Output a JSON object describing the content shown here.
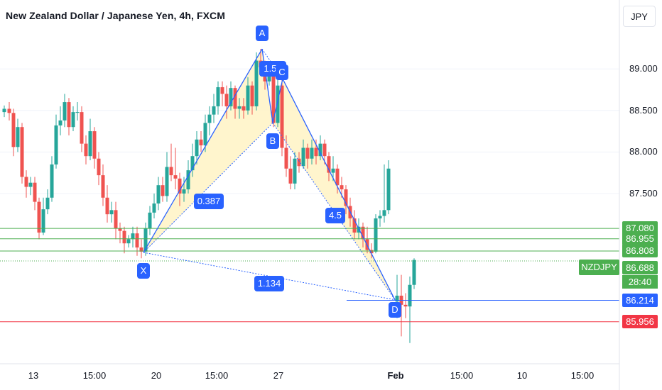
{
  "header": {
    "title": "New Zealand Dollar / Japanese Yen, 4h, FXCM",
    "currency": "JPY"
  },
  "colors": {
    "up": "#26a69a",
    "down": "#ef5350",
    "pattern": "#2962ff",
    "fill": "#fff3c4",
    "green_line": "#4caf50",
    "red_line": "#f23645"
  },
  "chart_data": {
    "type": "candlestick",
    "y_ticks": [
      "89.000",
      "88.500",
      "88.000",
      "87.500"
    ],
    "x_ticks": [
      "13",
      "15:00",
      "20",
      "15:00",
      "27",
      "Feb",
      "15:00",
      "10",
      "15:00"
    ],
    "ylim": [
      85.45,
      89.83
    ],
    "horizontal_lines": [
      {
        "label": "87.080",
        "value": 87.08,
        "color": "#4caf50"
      },
      {
        "label": "86.955",
        "value": 86.955,
        "color": "#4caf50"
      },
      {
        "label": "86.808",
        "value": 86.808,
        "color": "#4caf50"
      },
      {
        "label": "86.214",
        "value": 86.214,
        "color": "#2962ff"
      },
      {
        "label": "85.956",
        "value": 85.956,
        "color": "#f23645"
      }
    ],
    "current": {
      "symbol": "NZDJPY",
      "price": "86.688",
      "countdown": "28:40"
    },
    "pattern": {
      "points": [
        {
          "label": "X",
          "t": 202,
          "price": 86.79
        },
        {
          "label": "A",
          "t": 369,
          "price": 89.24
        },
        {
          "label": "B",
          "t": 384,
          "price": 88.35
        },
        {
          "label": "C",
          "t": 398,
          "price": 88.88
        },
        {
          "label": "D",
          "t": 556,
          "price": 86.22
        }
      ],
      "ratios": [
        {
          "label": "0.387"
        },
        {
          "label": "4.5"
        },
        {
          "label": "1.134"
        },
        {
          "label": "1.55"
        }
      ]
    },
    "candles": [
      [
        6,
        88.48,
        88.52,
        88.42,
        88.56
      ],
      [
        13,
        88.52,
        88.47,
        88.38,
        88.6
      ],
      [
        19,
        88.47,
        88.06,
        87.95,
        88.52
      ],
      [
        25,
        88.06,
        88.3,
        88.0,
        88.4
      ],
      [
        31,
        88.3,
        87.7,
        87.62,
        88.35
      ],
      [
        37,
        87.7,
        87.58,
        87.45,
        87.78
      ],
      [
        43,
        87.58,
        87.63,
        87.48,
        87.7
      ],
      [
        49,
        87.63,
        87.4,
        87.3,
        87.7
      ],
      [
        55,
        87.4,
        87.03,
        86.95,
        87.45
      ],
      [
        61,
        87.03,
        87.31,
        87.0,
        87.45
      ],
      [
        67,
        87.31,
        87.45,
        87.25,
        87.55
      ],
      [
        73,
        87.45,
        87.85,
        87.4,
        87.95
      ],
      [
        79,
        87.85,
        88.32,
        87.8,
        88.45
      ],
      [
        85,
        88.32,
        88.38,
        88.2,
        88.55
      ],
      [
        91,
        88.38,
        88.6,
        88.3,
        88.7
      ],
      [
        97,
        88.6,
        88.3,
        88.2,
        88.65
      ],
      [
        103,
        88.3,
        88.48,
        88.25,
        88.55
      ],
      [
        109,
        88.48,
        88.48,
        88.38,
        88.6
      ],
      [
        115,
        88.48,
        88.1,
        88.0,
        88.55
      ],
      [
        121,
        88.1,
        87.95,
        87.85,
        88.2
      ],
      [
        127,
        87.95,
        88.25,
        87.9,
        88.4
      ],
      [
        133,
        88.25,
        87.92,
        87.8,
        88.3
      ],
      [
        139,
        87.92,
        87.72,
        87.6,
        88.0
      ],
      [
        145,
        87.72,
        87.45,
        87.35,
        87.85
      ],
      [
        151,
        87.45,
        87.25,
        87.15,
        87.6
      ],
      [
        157,
        87.25,
        87.3,
        87.15,
        87.4
      ],
      [
        163,
        87.3,
        87.08,
        86.95,
        87.4
      ],
      [
        169,
        87.08,
        87.05,
        86.9,
        87.15
      ],
      [
        175,
        87.05,
        86.9,
        86.78,
        87.1
      ],
      [
        181,
        86.9,
        86.95,
        86.85,
        87.0
      ],
      [
        187,
        86.95,
        87.02,
        86.85,
        87.1
      ],
      [
        193,
        87.02,
        86.85,
        86.75,
        87.1
      ],
      [
        199,
        86.85,
        86.8,
        86.72,
        86.95
      ],
      [
        205,
        86.8,
        87.08,
        86.75,
        87.15
      ],
      [
        211,
        87.08,
        87.27,
        87.0,
        87.35
      ],
      [
        217,
        87.27,
        87.38,
        87.2,
        87.5
      ],
      [
        223,
        87.38,
        87.6,
        87.3,
        87.7
      ],
      [
        229,
        87.6,
        87.47,
        87.4,
        87.7
      ],
      [
        235,
        87.47,
        87.82,
        87.4,
        88.0
      ],
      [
        241,
        87.82,
        87.72,
        87.65,
        88.1
      ],
      [
        247,
        87.72,
        87.68,
        87.55,
        88.05
      ],
      [
        253,
        87.68,
        87.5,
        87.35,
        87.75
      ],
      [
        259,
        87.5,
        87.55,
        87.4,
        87.7
      ],
      [
        265,
        87.55,
        87.78,
        87.5,
        87.9
      ],
      [
        271,
        87.78,
        87.95,
        87.7,
        88.1
      ],
      [
        277,
        87.95,
        88.15,
        87.85,
        88.25
      ],
      [
        283,
        88.15,
        88.08,
        88.0,
        88.25
      ],
      [
        289,
        88.08,
        88.35,
        88.0,
        88.45
      ],
      [
        295,
        88.35,
        88.45,
        88.2,
        88.55
      ],
      [
        301,
        88.45,
        88.55,
        88.35,
        88.7
      ],
      [
        307,
        88.55,
        88.78,
        88.45,
        88.85
      ],
      [
        313,
        88.78,
        88.7,
        88.55,
        88.85
      ],
      [
        319,
        88.7,
        88.55,
        88.4,
        88.8
      ],
      [
        325,
        88.55,
        88.77,
        88.5,
        88.85
      ],
      [
        331,
        88.77,
        88.52,
        88.4,
        88.8
      ],
      [
        337,
        88.52,
        88.55,
        88.4,
        88.65
      ],
      [
        343,
        88.55,
        88.5,
        88.4,
        88.65
      ],
      [
        349,
        88.5,
        88.8,
        88.45,
        88.9
      ],
      [
        355,
        88.8,
        88.55,
        88.45,
        88.85
      ],
      [
        361,
        88.55,
        89.1,
        88.5,
        89.2
      ],
      [
        367,
        89.1,
        89.02,
        88.95,
        89.24
      ],
      [
        373,
        89.02,
        88.85,
        88.75,
        89.1
      ],
      [
        379,
        88.85,
        88.97,
        88.8,
        89.05
      ],
      [
        385,
        88.97,
        88.35,
        88.3,
        89.0
      ],
      [
        391,
        88.35,
        88.8,
        88.3,
        88.95
      ],
      [
        397,
        88.8,
        88.05,
        87.95,
        88.88
      ],
      [
        403,
        88.05,
        87.8,
        87.7,
        88.2
      ],
      [
        409,
        87.8,
        87.62,
        87.55,
        87.95
      ],
      [
        415,
        87.62,
        87.92,
        87.55,
        88.0
      ],
      [
        421,
        87.92,
        87.83,
        87.75,
        88.0
      ],
      [
        427,
        87.83,
        88.05,
        87.8,
        88.15
      ],
      [
        433,
        88.05,
        87.92,
        87.8,
        88.1
      ],
      [
        439,
        87.92,
        88.05,
        87.85,
        88.15
      ],
      [
        445,
        88.05,
        87.95,
        87.85,
        88.15
      ],
      [
        451,
        87.95,
        88.1,
        87.9,
        88.2
      ],
      [
        457,
        88.1,
        87.95,
        87.85,
        88.15
      ],
      [
        463,
        87.95,
        87.75,
        87.65,
        88.0
      ],
      [
        469,
        87.75,
        87.8,
        87.65,
        87.95
      ],
      [
        475,
        87.8,
        87.6,
        87.5,
        87.85
      ],
      [
        481,
        87.6,
        87.55,
        87.45,
        87.7
      ],
      [
        487,
        87.55,
        87.35,
        87.25,
        87.6
      ],
      [
        493,
        87.35,
        87.2,
        87.1,
        87.45
      ],
      [
        499,
        87.2,
        87.03,
        86.95,
        87.3
      ],
      [
        505,
        87.03,
        87.1,
        86.95,
        87.2
      ],
      [
        511,
        87.1,
        86.95,
        86.85,
        87.15
      ],
      [
        517,
        86.95,
        86.82,
        86.78,
        87.1
      ],
      [
        523,
        86.82,
        86.78,
        86.72,
        86.9
      ],
      [
        529,
        86.8,
        87.2,
        86.78,
        87.25
      ],
      [
        535,
        87.2,
        87.23,
        87.1,
        87.3
      ],
      [
        541,
        87.23,
        87.3,
        87.15,
        87.85
      ],
      [
        547,
        87.3,
        87.8,
        87.25,
        87.9
      ],
      [
        559,
        86.2,
        86.27,
        86.0,
        86.52
      ],
      [
        565,
        86.27,
        86.16,
        85.78,
        86.52
      ],
      [
        571,
        86.16,
        86.14,
        86.0,
        86.3
      ],
      [
        577,
        86.14,
        86.4,
        85.7,
        86.5
      ],
      [
        583,
        86.4,
        86.7,
        86.35,
        86.72
      ]
    ]
  }
}
